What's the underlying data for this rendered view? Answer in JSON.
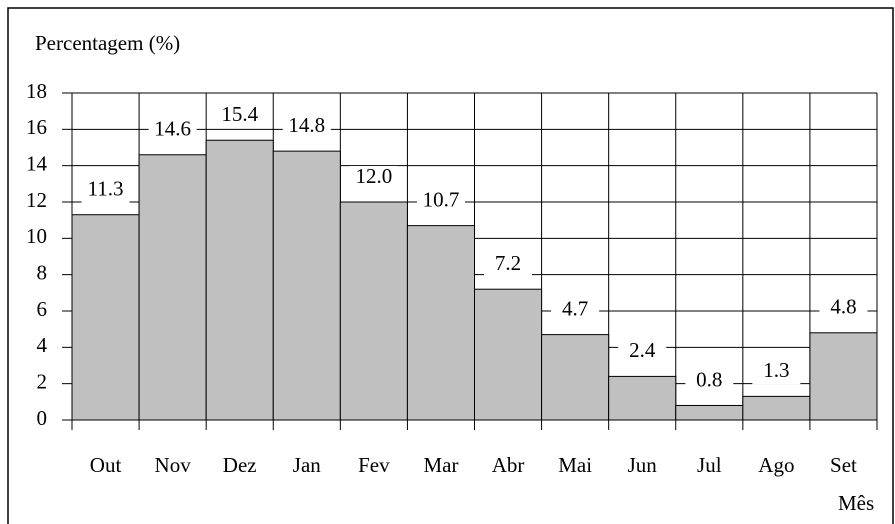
{
  "chart_data": {
    "type": "bar",
    "title": "Percentagem (%)",
    "x_label": "Mês",
    "categories": [
      "Out",
      "Nov",
      "Dez",
      "Jan",
      "Fev",
      "Mar",
      "Abr",
      "Mai",
      "Jun",
      "Jul",
      "Ago",
      "Set"
    ],
    "values": [
      11.3,
      14.6,
      15.4,
      14.8,
      12.0,
      10.7,
      7.2,
      4.7,
      2.4,
      0.8,
      1.3,
      4.8
    ],
    "value_labels": [
      "11.3",
      "14.6",
      "15.4",
      "14.8",
      "12.0",
      "10.7",
      "7.2",
      "4.7",
      "2.4",
      "0.8",
      "1.3",
      "4.8"
    ],
    "color": "#c0c0c0",
    "ylim": [
      0,
      18
    ],
    "yticks": [
      0,
      2,
      4,
      6,
      8,
      10,
      12,
      14,
      16,
      18
    ],
    "grid": true
  }
}
